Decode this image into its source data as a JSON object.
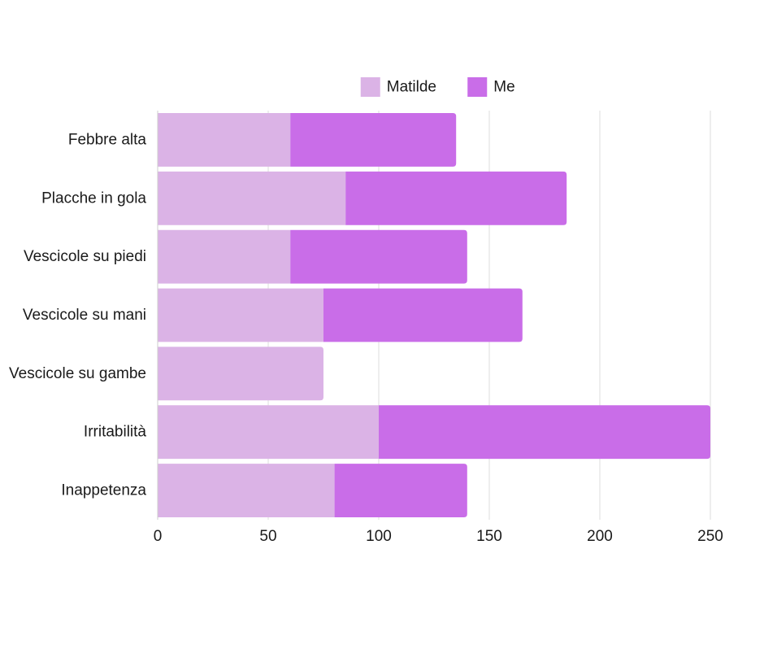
{
  "chart_data": {
    "type": "bar",
    "orientation": "horizontal",
    "stacked": true,
    "title": "",
    "xlabel": "",
    "ylabel": "",
    "categories": [
      "Febbre alta",
      "Placche in gola",
      "Vescicole su piedi",
      "Vescicole su mani",
      "Vescicole su gambe",
      "Irritabilità",
      "Inappetenza"
    ],
    "series": [
      {
        "name": "Matilde",
        "color": "#dbb3e6",
        "values": [
          60,
          85,
          60,
          75,
          75,
          100,
          80
        ]
      },
      {
        "name": "Me",
        "color": "#c96de8",
        "values": [
          75,
          100,
          80,
          90,
          0,
          150,
          60
        ]
      }
    ],
    "xlim": [
      0,
      250
    ],
    "xticks": [
      "0",
      "50",
      "100",
      "150",
      "200",
      "250"
    ],
    "xtick_values": [
      0,
      50,
      100,
      150,
      200,
      250
    ],
    "grid": true,
    "legend_position": "top-center",
    "grid_color": "#dddddd",
    "axis_color": "#cccccc"
  }
}
